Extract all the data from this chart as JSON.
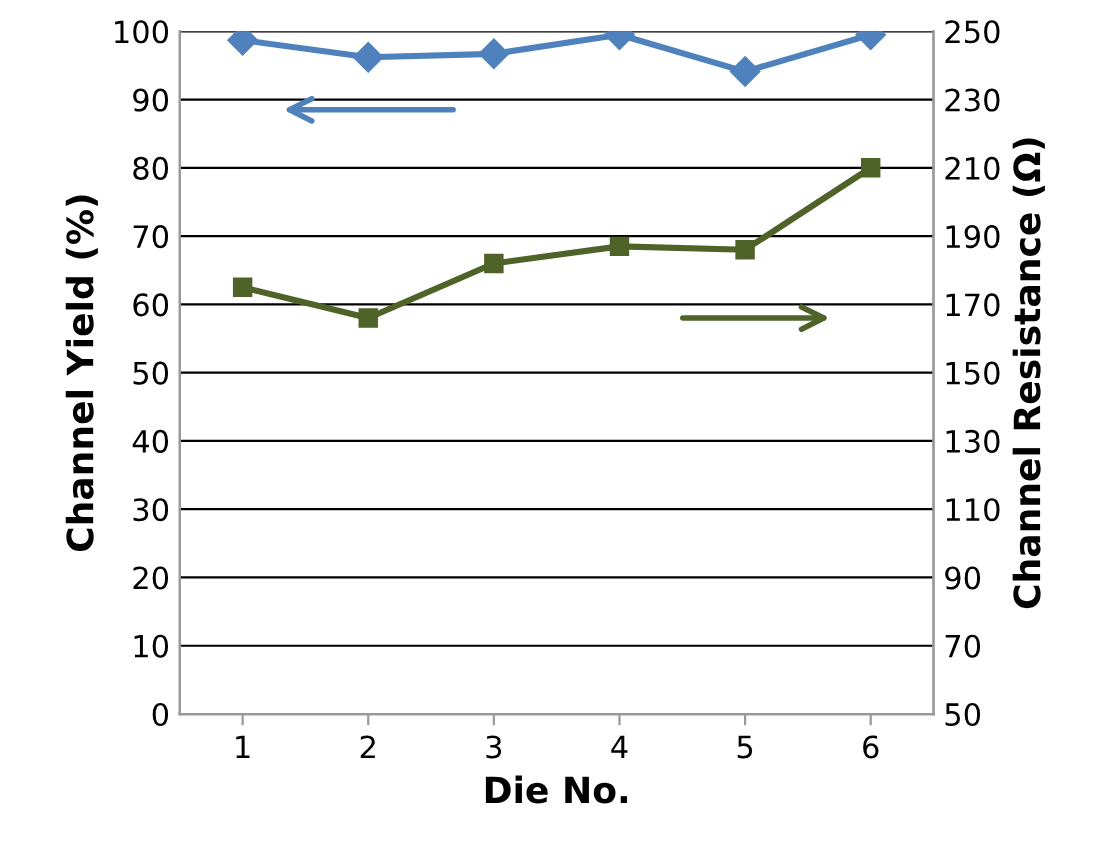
{
  "chart_data": {
    "type": "line",
    "xlabel": "Die No.",
    "ylabel": "Channel Yield (%)",
    "y2label": "Channel Resistance (Ω)",
    "categories": [
      "1",
      "2",
      "3",
      "4",
      "5",
      "6"
    ],
    "series": [
      {
        "color": "#4f81bd",
        "marker": "diamond",
        "values": [
          98.7,
          96.2,
          96.7,
          99.5,
          94.1,
          99.5
        ]
      },
      {
        "color": "#4f6228",
        "marker": "square",
        "axis": "y2",
        "values": [
          175,
          166,
          182,
          187,
          186,
          210
        ]
      }
    ],
    "ylim": [
      0,
      100
    ],
    "yticks": [
      0,
      10,
      20,
      30,
      40,
      50,
      60,
      70,
      80,
      90,
      100
    ],
    "y2lim": [
      50,
      250
    ],
    "y2ticks": [
      50,
      70,
      90,
      110,
      130,
      150,
      170,
      190,
      210,
      230,
      250
    ],
    "grid": "y"
  }
}
